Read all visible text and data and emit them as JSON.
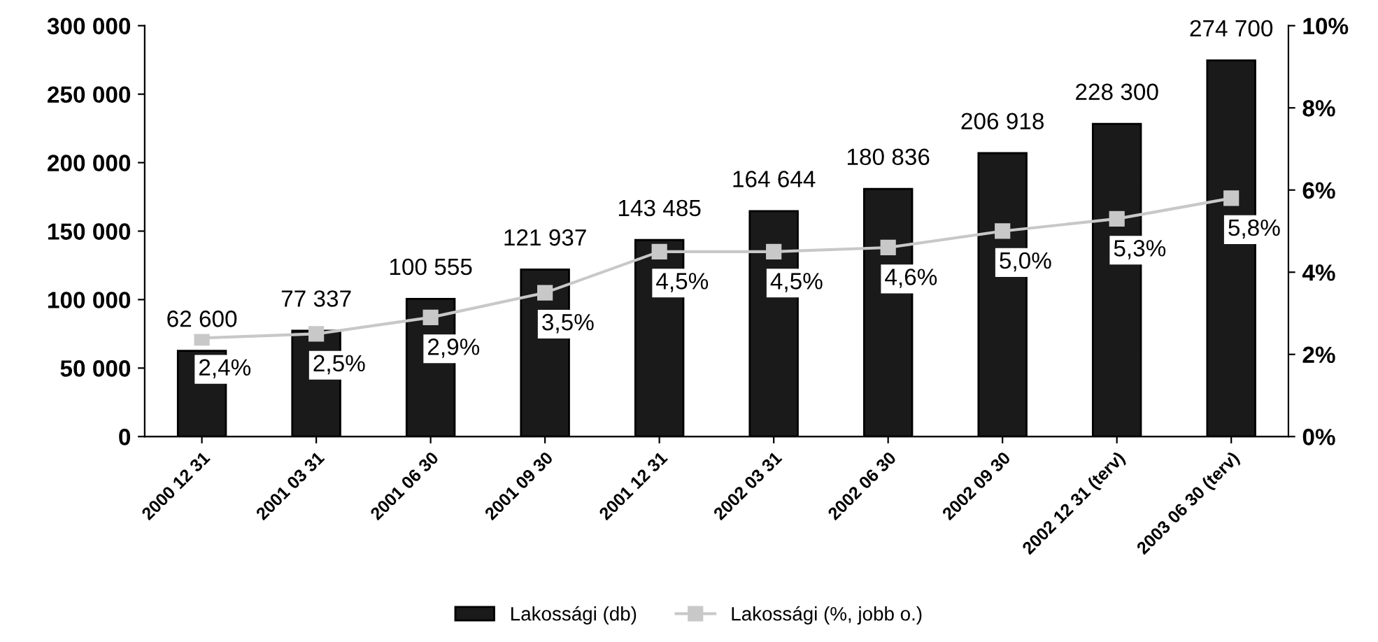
{
  "chart_data": {
    "type": "bar",
    "categories": [
      "2000 12 31",
      "2001 03 31",
      "2001 06 30",
      "2001 09 30",
      "2001 12 31",
      "2002 03 31",
      "2002 06 30",
      "2002 09 30",
      "2002 12 31 (terv)",
      "2003 06 30 (terv)"
    ],
    "series": [
      {
        "name": "Lakossági (db)",
        "color": "#1a1a1a",
        "values": [
          62600,
          77337,
          100555,
          121937,
          143485,
          164644,
          180836,
          206918,
          228300,
          274700
        ],
        "value_labels": [
          "62 600",
          "77 337",
          "100 555",
          "121 937",
          "143 485",
          "164 644",
          "180 836",
          "206 918",
          "228 300",
          "274 700"
        ]
      },
      {
        "name": "Lakossági (%, jobb o.)",
        "type": "line",
        "axis": "y2",
        "color": "#c8c8c8",
        "marker": "square",
        "values": [
          2.4,
          2.5,
          2.9,
          3.5,
          4.5,
          4.5,
          4.6,
          5.0,
          5.3,
          5.8
        ],
        "value_labels": [
          "2,4%",
          "2,5%",
          "2,9%",
          "3,5%",
          "4,5%",
          "4,5%",
          "4,6%",
          "5,0%",
          "5,3%",
          "5,8%"
        ]
      }
    ],
    "ylim": [
      0,
      300000
    ],
    "yticks": [
      {
        "value": 0,
        "label": "0"
      },
      {
        "value": 50000,
        "label": "50 000"
      },
      {
        "value": 100000,
        "label": "100 000"
      },
      {
        "value": 150000,
        "label": "150 000"
      },
      {
        "value": 200000,
        "label": "200 000"
      },
      {
        "value": 250000,
        "label": "250 000"
      },
      {
        "value": 300000,
        "label": "300 000"
      }
    ],
    "y2lim": [
      0,
      10
    ],
    "y2ticks": [
      {
        "value": 0,
        "label": "0%"
      },
      {
        "value": 2,
        "label": "2%"
      },
      {
        "value": 4,
        "label": "4%"
      },
      {
        "value": 6,
        "label": "6%"
      },
      {
        "value": 8,
        "label": "8%"
      },
      {
        "value": 10,
        "label": "10%"
      }
    ],
    "grid": false,
    "legend": "bottom"
  }
}
